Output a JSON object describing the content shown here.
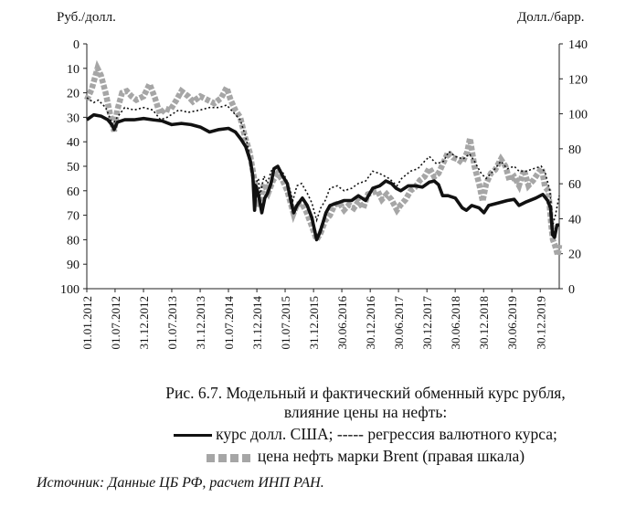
{
  "caption": {
    "line1": "Рис. 6.7. Модельный и фактический обменный курс рубля,",
    "line2": "влияние цены на нефть:",
    "legend_line1": "курс долл. США; ----- регрессия валютного курса;",
    "legend_line2": "цена нефть марки Brent (правая шкала)"
  },
  "source": "Источник: Данные ЦБ РФ, расчет ИНП РАН.",
  "chart_data": {
    "type": "line",
    "ylabel_left": "Руб./долл.",
    "ylabel_right": "Долл./барр.",
    "y_left": {
      "min": 0,
      "max": 100,
      "inverted": true,
      "ticks": [
        "0",
        "10",
        "20",
        "30",
        "40",
        "50",
        "60",
        "70",
        "80",
        "90",
        "100"
      ]
    },
    "y_right": {
      "min": 0,
      "max": 140,
      "ticks": [
        "0",
        "20",
        "40",
        "60",
        "80",
        "100",
        "120",
        "140"
      ]
    },
    "x_range": [
      "2012-01-01",
      "2020-04-30"
    ],
    "x_tick_labels": [
      "01.01.2012",
      "01.07.2012",
      "31.12.2012",
      "01.07.2013",
      "31.12.2013",
      "01.07.2014",
      "31.12.2014",
      "01.07.2015",
      "31.12.2015",
      "30.06.2016",
      "30.12.2016",
      "30.06.2017",
      "30.12.2017",
      "30.06.2018",
      "30.12.2018",
      "30.06.2019",
      "30.12.2019"
    ],
    "grid": false,
    "colors": {
      "usd_rate": "#111111",
      "regression": "#111111",
      "brent": "#a6a6a6"
    },
    "series": [
      {
        "name": "курс долл. США",
        "axis": "left",
        "style": "solid",
        "points": [
          [
            "2012-01-01",
            31
          ],
          [
            "2012-02-15",
            29
          ],
          [
            "2012-04-01",
            29.5
          ],
          [
            "2012-05-15",
            31
          ],
          [
            "2012-06-10",
            33
          ],
          [
            "2012-06-25",
            35
          ],
          [
            "2012-07-15",
            32
          ],
          [
            "2012-09-01",
            31
          ],
          [
            "2012-11-01",
            31
          ],
          [
            "2013-01-01",
            30.5
          ],
          [
            "2013-03-01",
            31
          ],
          [
            "2013-05-01",
            31.5
          ],
          [
            "2013-07-01",
            33
          ],
          [
            "2013-09-01",
            32.5
          ],
          [
            "2013-11-01",
            33
          ],
          [
            "2014-01-01",
            34
          ],
          [
            "2014-03-01",
            36
          ],
          [
            "2014-05-01",
            35
          ],
          [
            "2014-07-01",
            34.5
          ],
          [
            "2014-08-15",
            36
          ],
          [
            "2014-09-20",
            39
          ],
          [
            "2014-10-20",
            42
          ],
          [
            "2014-11-20",
            48
          ],
          [
            "2014-12-05",
            54
          ],
          [
            "2014-12-16",
            68
          ],
          [
            "2014-12-25",
            58
          ],
          [
            "2015-01-15",
            63
          ],
          [
            "2015-02-01",
            69
          ],
          [
            "2015-02-20",
            63
          ],
          [
            "2015-03-10",
            61
          ],
          [
            "2015-04-01",
            57
          ],
          [
            "2015-04-20",
            51
          ],
          [
            "2015-05-15",
            50
          ],
          [
            "2015-06-15",
            54
          ],
          [
            "2015-07-15",
            57
          ],
          [
            "2015-08-10",
            65
          ],
          [
            "2015-08-25",
            69
          ],
          [
            "2015-09-15",
            66
          ],
          [
            "2015-10-20",
            63
          ],
          [
            "2015-11-20",
            66
          ],
          [
            "2015-12-20",
            71
          ],
          [
            "2016-01-20",
            80
          ],
          [
            "2016-02-10",
            77
          ],
          [
            "2016-03-01",
            73
          ],
          [
            "2016-03-20",
            69
          ],
          [
            "2016-04-15",
            66
          ],
          [
            "2016-06-01",
            65
          ],
          [
            "2016-07-15",
            64
          ],
          [
            "2016-09-01",
            64
          ],
          [
            "2016-10-15",
            62
          ],
          [
            "2016-12-01",
            64
          ],
          [
            "2017-01-15",
            59
          ],
          [
            "2017-03-01",
            58
          ],
          [
            "2017-04-10",
            56
          ],
          [
            "2017-05-15",
            57
          ],
          [
            "2017-06-15",
            59
          ],
          [
            "2017-07-15",
            60
          ],
          [
            "2017-09-01",
            58
          ],
          [
            "2017-10-15",
            58
          ],
          [
            "2017-12-01",
            58.5
          ],
          [
            "2018-01-15",
            56.5
          ],
          [
            "2018-02-15",
            56
          ],
          [
            "2018-03-15",
            57.5
          ],
          [
            "2018-04-10",
            62
          ],
          [
            "2018-05-15",
            62
          ],
          [
            "2018-07-01",
            63
          ],
          [
            "2018-08-15",
            67
          ],
          [
            "2018-09-10",
            68
          ],
          [
            "2018-10-15",
            66
          ],
          [
            "2018-12-01",
            67
          ],
          [
            "2019-01-01",
            69
          ],
          [
            "2019-02-01",
            66
          ],
          [
            "2019-04-01",
            65
          ],
          [
            "2019-06-01",
            64
          ],
          [
            "2019-07-15",
            63.5
          ],
          [
            "2019-08-15",
            66
          ],
          [
            "2019-10-01",
            64.5
          ],
          [
            "2019-12-01",
            63
          ],
          [
            "2020-01-15",
            61.5
          ],
          [
            "2020-02-15",
            64
          ],
          [
            "2020-03-05",
            67
          ],
          [
            "2020-03-18",
            78
          ],
          [
            "2020-03-31",
            79
          ],
          [
            "2020-04-15",
            74
          ],
          [
            "2020-04-30",
            74
          ]
        ]
      },
      {
        "name": "регрессия валютного курса",
        "axis": "left",
        "style": "dashed",
        "points": [
          [
            "2012-01-01",
            22
          ],
          [
            "2012-02-15",
            24
          ],
          [
            "2012-03-15",
            23
          ],
          [
            "2012-05-01",
            26
          ],
          [
            "2012-06-15",
            33
          ],
          [
            "2012-07-15",
            30
          ],
          [
            "2012-09-01",
            26
          ],
          [
            "2012-11-01",
            27
          ],
          [
            "2013-01-01",
            26
          ],
          [
            "2013-03-01",
            27
          ],
          [
            "2013-04-20",
            31
          ],
          [
            "2013-06-01",
            30
          ],
          [
            "2013-08-15",
            27
          ],
          [
            "2013-10-15",
            28
          ],
          [
            "2014-01-01",
            27
          ],
          [
            "2014-03-01",
            26
          ],
          [
            "2014-05-01",
            26
          ],
          [
            "2014-06-20",
            25
          ],
          [
            "2014-08-01",
            28
          ],
          [
            "2014-09-15",
            31
          ],
          [
            "2014-10-20",
            38
          ],
          [
            "2014-11-20",
            47
          ],
          [
            "2014-12-15",
            58
          ],
          [
            "2015-01-10",
            55
          ],
          [
            "2015-01-20",
            62
          ],
          [
            "2015-02-15",
            54
          ],
          [
            "2015-03-10",
            57
          ],
          [
            "2015-04-01",
            52
          ],
          [
            "2015-05-15",
            50
          ],
          [
            "2015-06-20",
            53
          ],
          [
            "2015-07-20",
            57
          ],
          [
            "2015-08-20",
            64
          ],
          [
            "2015-09-15",
            58
          ],
          [
            "2015-10-15",
            57
          ],
          [
            "2015-11-20",
            61
          ],
          [
            "2015-12-20",
            65
          ],
          [
            "2016-01-20",
            72
          ],
          [
            "2016-02-15",
            67
          ],
          [
            "2016-03-15",
            64
          ],
          [
            "2016-04-15",
            59
          ],
          [
            "2016-06-01",
            58
          ],
          [
            "2016-07-15",
            60
          ],
          [
            "2016-09-01",
            59
          ],
          [
            "2016-10-15",
            57
          ],
          [
            "2016-12-01",
            56
          ],
          [
            "2017-01-15",
            52
          ],
          [
            "2017-03-01",
            53
          ],
          [
            "2017-05-01",
            55
          ],
          [
            "2017-06-20",
            58
          ],
          [
            "2017-07-20",
            55
          ],
          [
            "2017-09-15",
            52
          ],
          [
            "2017-11-01",
            51
          ],
          [
            "2017-12-15",
            48
          ],
          [
            "2018-01-15",
            46
          ],
          [
            "2018-03-01",
            49
          ],
          [
            "2018-04-15",
            48
          ],
          [
            "2018-05-20",
            44
          ],
          [
            "2018-07-01",
            46
          ],
          [
            "2018-08-20",
            47
          ],
          [
            "2018-10-01",
            45
          ],
          [
            "2018-11-01",
            48
          ],
          [
            "2018-12-15",
            53
          ],
          [
            "2019-01-15",
            55
          ],
          [
            "2019-03-01",
            52
          ],
          [
            "2019-04-20",
            48
          ],
          [
            "2019-06-01",
            51
          ],
          [
            "2019-07-15",
            50
          ],
          [
            "2019-08-15",
            52
          ],
          [
            "2019-10-01",
            52
          ],
          [
            "2019-11-15",
            51
          ],
          [
            "2020-01-05",
            50
          ],
          [
            "2020-02-01",
            53
          ],
          [
            "2020-03-01",
            60
          ],
          [
            "2020-03-20",
            74
          ],
          [
            "2020-04-05",
            70
          ],
          [
            "2020-04-30",
            62
          ]
        ]
      },
      {
        "name": "цена нефть марки Brent (правая шкала)",
        "axis": "right",
        "style": "dotted-squares",
        "points": [
          [
            "2012-01-01",
            108
          ],
          [
            "2012-02-01",
            114
          ],
          [
            "2012-03-10",
            126
          ],
          [
            "2012-04-01",
            122
          ],
          [
            "2012-05-01",
            112
          ],
          [
            "2012-06-01",
            99
          ],
          [
            "2012-06-25",
            90
          ],
          [
            "2012-07-15",
            102
          ],
          [
            "2012-08-15",
            112
          ],
          [
            "2012-09-15",
            113
          ],
          [
            "2012-10-15",
            110
          ],
          [
            "2012-11-15",
            108
          ],
          [
            "2013-01-01",
            110
          ],
          [
            "2013-02-08",
            117
          ],
          [
            "2013-03-15",
            109
          ],
          [
            "2013-04-15",
            100
          ],
          [
            "2013-05-20",
            103
          ],
          [
            "2013-06-20",
            102
          ],
          [
            "2013-08-01",
            108
          ],
          [
            "2013-09-01",
            113
          ],
          [
            "2013-10-15",
            110
          ],
          [
            "2013-11-15",
            107
          ],
          [
            "2014-01-01",
            110
          ],
          [
            "2014-02-15",
            108
          ],
          [
            "2014-04-01",
            106
          ],
          [
            "2014-05-15",
            109
          ],
          [
            "2014-06-19",
            115
          ],
          [
            "2014-07-15",
            108
          ],
          [
            "2014-08-15",
            102
          ],
          [
            "2014-09-15",
            98
          ],
          [
            "2014-10-15",
            87
          ],
          [
            "2014-11-15",
            78
          ],
          [
            "2014-12-15",
            62
          ],
          [
            "2015-01-13",
            47
          ],
          [
            "2015-02-15",
            60
          ],
          [
            "2015-03-15",
            55
          ],
          [
            "2015-04-15",
            62
          ],
          [
            "2015-05-15",
            66
          ],
          [
            "2015-06-15",
            62
          ],
          [
            "2015-07-15",
            56
          ],
          [
            "2015-08-24",
            43
          ],
          [
            "2015-09-15",
            48
          ],
          [
            "2015-10-15",
            49
          ],
          [
            "2015-11-15",
            44
          ],
          [
            "2015-12-15",
            37
          ],
          [
            "2016-01-20",
            28
          ],
          [
            "2016-02-15",
            32
          ],
          [
            "2016-03-15",
            39
          ],
          [
            "2016-04-15",
            42
          ],
          [
            "2016-05-15",
            48
          ],
          [
            "2016-06-15",
            49
          ],
          [
            "2016-07-15",
            45
          ],
          [
            "2016-08-15",
            48
          ],
          [
            "2016-09-15",
            46
          ],
          [
            "2016-10-15",
            50
          ],
          [
            "2016-11-15",
            46
          ],
          [
            "2016-12-15",
            54
          ],
          [
            "2017-01-15",
            55
          ],
          [
            "2017-02-15",
            56
          ],
          [
            "2017-03-15",
            51
          ],
          [
            "2017-04-15",
            54
          ],
          [
            "2017-05-15",
            51
          ],
          [
            "2017-06-20",
            45
          ],
          [
            "2017-07-15",
            48
          ],
          [
            "2017-08-15",
            51
          ],
          [
            "2017-09-15",
            56
          ],
          [
            "2017-10-15",
            58
          ],
          [
            "2017-11-15",
            62
          ],
          [
            "2017-12-15",
            64
          ],
          [
            "2018-01-15",
            69
          ],
          [
            "2018-02-15",
            64
          ],
          [
            "2018-03-15",
            66
          ],
          [
            "2018-04-15",
            72
          ],
          [
            "2018-05-15",
            78
          ],
          [
            "2018-06-15",
            75
          ],
          [
            "2018-07-15",
            74
          ],
          [
            "2018-08-15",
            72
          ],
          [
            "2018-09-15",
            78
          ],
          [
            "2018-10-03",
            86
          ],
          [
            "2018-11-01",
            70
          ],
          [
            "2018-12-01",
            60
          ],
          [
            "2018-12-24",
            50
          ],
          [
            "2019-01-15",
            60
          ],
          [
            "2019-02-15",
            66
          ],
          [
            "2019-03-15",
            68
          ],
          [
            "2019-04-20",
            74
          ],
          [
            "2019-05-20",
            70
          ],
          [
            "2019-06-15",
            62
          ],
          [
            "2019-07-15",
            64
          ],
          [
            "2019-08-15",
            59
          ],
          [
            "2019-09-16",
            68
          ],
          [
            "2019-10-15",
            59
          ],
          [
            "2019-11-15",
            62
          ],
          [
            "2019-12-15",
            66
          ],
          [
            "2020-01-08",
            69
          ],
          [
            "2020-01-30",
            58
          ],
          [
            "2020-02-20",
            56
          ],
          [
            "2020-03-10",
            36
          ],
          [
            "2020-03-20",
            28
          ],
          [
            "2020-04-02",
            25
          ],
          [
            "2020-04-21",
            19
          ],
          [
            "2020-04-30",
            25
          ]
        ]
      }
    ]
  }
}
